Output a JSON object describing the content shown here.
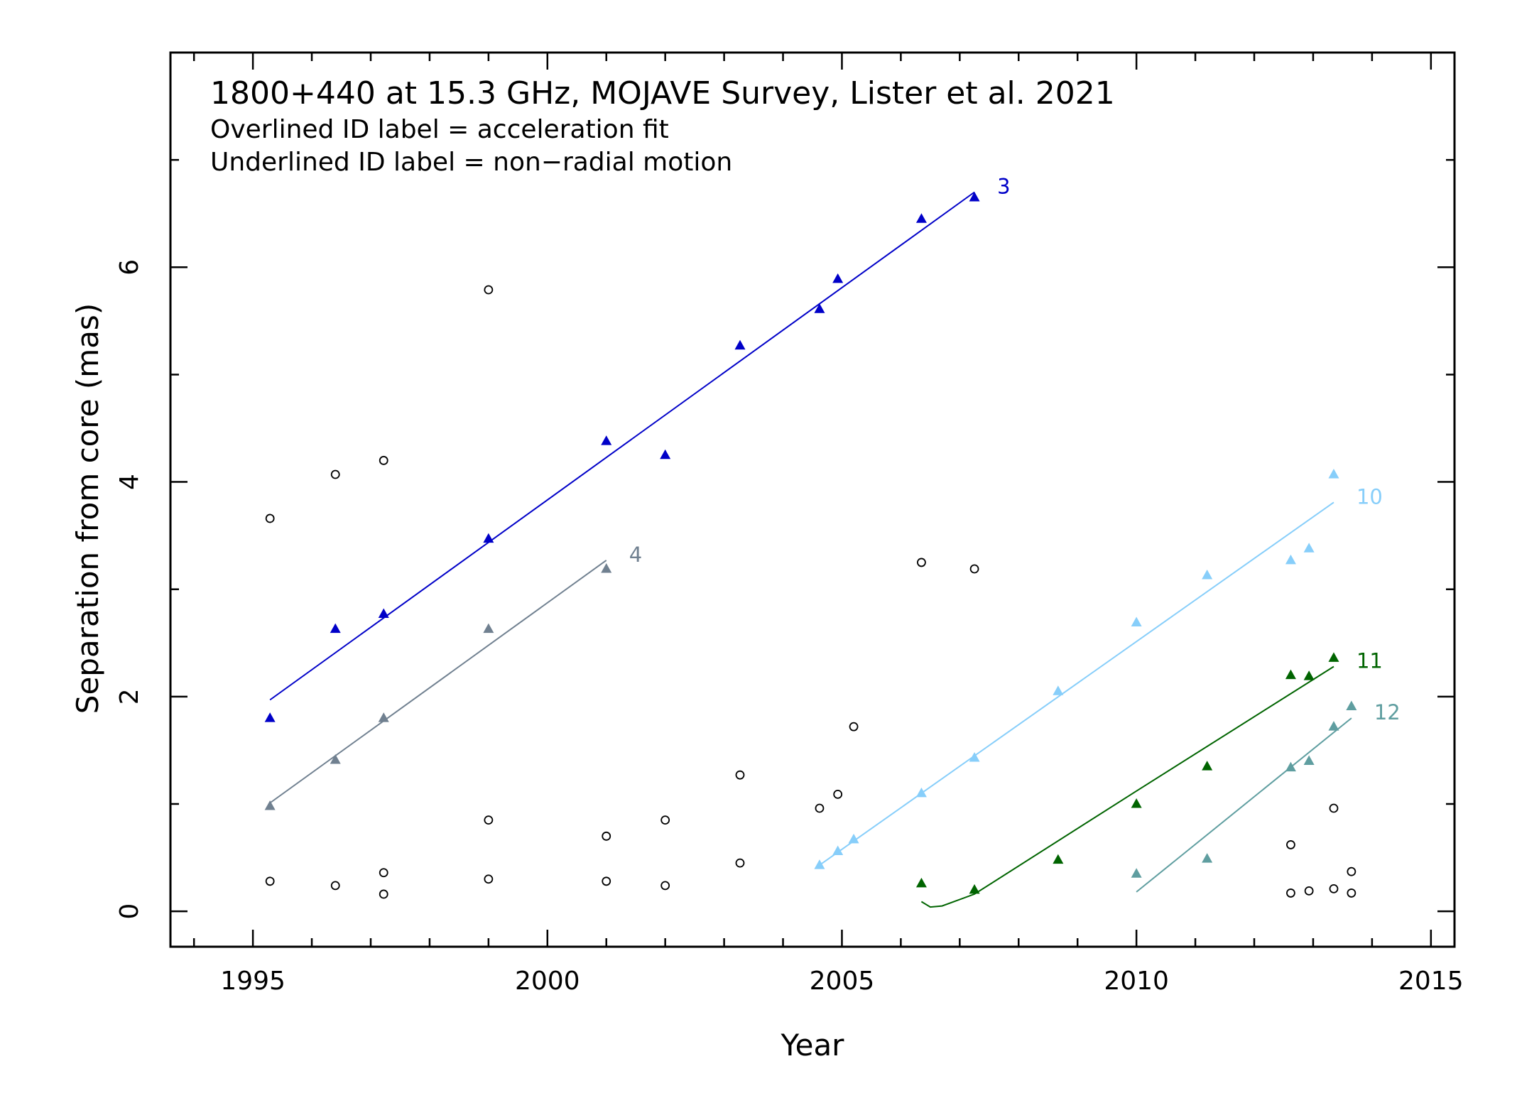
{
  "chart_data": {
    "type": "scatter",
    "title": "1800+440 at 15.3 GHz, MOJAVE Survey, Lister et al. 2021",
    "notes": [
      "Overlined ID label = acceleration fit",
      "Underlined ID label = non−radial motion"
    ],
    "xlabel": "Year",
    "ylabel": "Separation from core (mas)",
    "xlim": [
      1993.6,
      2015.4
    ],
    "ylim": [
      -0.33,
      8.0
    ],
    "xticks": [
      1995,
      2000,
      2005,
      2010,
      2015
    ],
    "yticks": [
      0,
      2,
      4,
      6
    ],
    "grid": false,
    "series": [
      {
        "name": "3",
        "color": "#0000c8",
        "marker": "triangle",
        "points": [
          [
            1995.29,
            1.8
          ],
          [
            1996.4,
            2.63
          ],
          [
            1997.22,
            2.77
          ],
          [
            1999.0,
            3.47
          ],
          [
            2001.0,
            4.38
          ],
          [
            2002.0,
            4.25
          ],
          [
            2003.27,
            5.27
          ],
          [
            2004.62,
            5.61
          ],
          [
            2004.93,
            5.89
          ],
          [
            2006.35,
            6.45
          ],
          [
            2007.25,
            6.65
          ]
        ],
        "fit": [
          [
            1995.29,
            1.97
          ],
          [
            2007.25,
            6.7
          ]
        ]
      },
      {
        "name": "4",
        "color": "#708090",
        "marker": "triangle",
        "points": [
          [
            1995.29,
            0.98
          ],
          [
            1996.4,
            1.41
          ],
          [
            1997.22,
            1.8
          ],
          [
            1999.0,
            2.63
          ],
          [
            2001.0,
            3.19
          ]
        ],
        "fit": [
          [
            1995.29,
            1.01
          ],
          [
            2001.0,
            3.27
          ]
        ]
      },
      {
        "name": "10",
        "color": "#87cefa",
        "marker": "triangle",
        "points": [
          [
            2004.62,
            0.43
          ],
          [
            2004.93,
            0.56
          ],
          [
            2005.2,
            0.67
          ],
          [
            2006.35,
            1.1
          ],
          [
            2007.25,
            1.43
          ],
          [
            2008.67,
            2.05
          ],
          [
            2010.0,
            2.69
          ],
          [
            2011.2,
            3.13
          ],
          [
            2012.62,
            3.27
          ],
          [
            2012.93,
            3.38
          ],
          [
            2013.35,
            4.07
          ]
        ],
        "fit": [
          [
            2004.62,
            0.43
          ],
          [
            2013.35,
            3.81
          ]
        ]
      },
      {
        "name": "11",
        "color": "#006400",
        "marker": "triangle",
        "points": [
          [
            2006.35,
            0.26
          ],
          [
            2007.25,
            0.2
          ],
          [
            2008.67,
            0.48
          ],
          [
            2010.0,
            1.0
          ],
          [
            2011.2,
            1.35
          ],
          [
            2012.62,
            2.2
          ],
          [
            2012.93,
            2.19
          ],
          [
            2013.35,
            2.36
          ]
        ],
        "fit": [
          [
            2006.35,
            0.09
          ],
          [
            2006.5,
            0.04
          ],
          [
            2006.7,
            0.05
          ],
          [
            2007.25,
            0.16
          ],
          [
            2010.0,
            1.12
          ],
          [
            2013.35,
            2.28
          ]
        ]
      },
      {
        "name": "12",
        "color": "#5f9ea0",
        "marker": "triangle",
        "points": [
          [
            2010.0,
            0.35
          ],
          [
            2011.2,
            0.49
          ],
          [
            2012.62,
            1.34
          ],
          [
            2012.93,
            1.4
          ],
          [
            2013.35,
            1.72
          ],
          [
            2013.65,
            1.91
          ]
        ],
        "fit": [
          [
            2010.0,
            0.18
          ],
          [
            2013.65,
            1.8
          ]
        ]
      },
      {
        "name": "",
        "color": "#000000",
        "marker": "circle",
        "points": [
          [
            1995.29,
            3.66
          ],
          [
            1995.29,
            0.28
          ],
          [
            1996.4,
            4.07
          ],
          [
            1996.4,
            0.24
          ],
          [
            1997.22,
            4.2
          ],
          [
            1997.22,
            0.36
          ],
          [
            1997.22,
            0.16
          ],
          [
            1999.0,
            5.79
          ],
          [
            1999.0,
            0.85
          ],
          [
            1999.0,
            0.3
          ],
          [
            2001.0,
            0.7
          ],
          [
            2001.0,
            0.28
          ],
          [
            2002.0,
            0.85
          ],
          [
            2002.0,
            0.24
          ],
          [
            2003.27,
            1.27
          ],
          [
            2003.27,
            0.45
          ],
          [
            2004.62,
            0.96
          ],
          [
            2004.93,
            1.09
          ],
          [
            2005.2,
            1.72
          ],
          [
            2006.35,
            3.25
          ],
          [
            2007.25,
            3.19
          ],
          [
            2012.62,
            0.62
          ],
          [
            2012.62,
            0.17
          ],
          [
            2012.93,
            0.19
          ],
          [
            2013.35,
            0.96
          ],
          [
            2013.35,
            0.21
          ],
          [
            2013.65,
            0.37
          ],
          [
            2013.65,
            0.17
          ]
        ]
      }
    ]
  }
}
